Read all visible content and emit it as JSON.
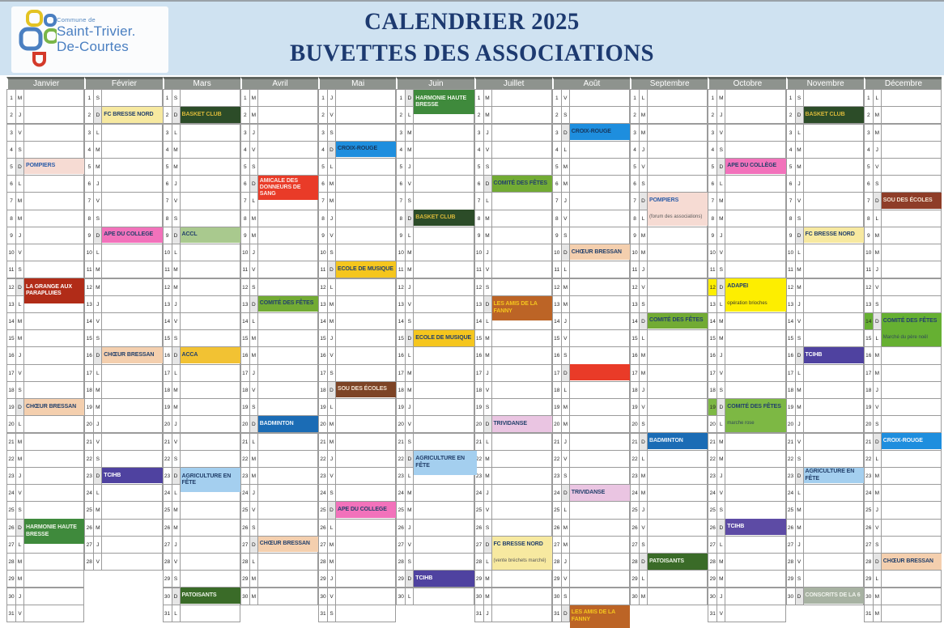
{
  "header": {
    "logo": {
      "small": "Commune de",
      "line1": "Saint-Trivier.",
      "line2": "De-Courtes"
    },
    "title_line1": "CALENDRIER 2025",
    "title_line2": "BUVETTES DES ASSOCIATIONS"
  },
  "colors": {
    "banner_bg": "#cfe2f1",
    "title": "#1d3a70",
    "band_bg": "#8e938e",
    "band_text": "#ffffff",
    "grid_border": "#9b9b9b",
    "sunday_letter_bg": "#e6e6e6",
    "logo_text": "#4a7fc1"
  },
  "calendar": {
    "weekday_letters": [
      "L",
      "M",
      "M",
      "J",
      "V",
      "S",
      "D"
    ],
    "months": [
      {
        "name": "Janvier",
        "days": 31,
        "first_dow": 2
      },
      {
        "name": "Février",
        "days": 28,
        "first_dow": 5
      },
      {
        "name": "Mars",
        "days": 31,
        "first_dow": 5
      },
      {
        "name": "Avril",
        "days": 30,
        "first_dow": 1
      },
      {
        "name": "Mai",
        "days": 31,
        "first_dow": 3
      },
      {
        "name": "Juin",
        "days": 30,
        "first_dow": 6
      },
      {
        "name": "Juillet",
        "days": 31,
        "first_dow": 1
      },
      {
        "name": "Août",
        "days": 31,
        "first_dow": 4
      },
      {
        "name": "Septembre",
        "days": 30,
        "first_dow": 0
      },
      {
        "name": "Octobre",
        "days": 31,
        "first_dow": 2
      },
      {
        "name": "Novembre",
        "days": 30,
        "first_dow": 5
      },
      {
        "name": "Décembre",
        "days": 31,
        "first_dow": 0
      }
    ],
    "events": [
      {
        "month": 1,
        "day": 5,
        "label": "POMPIERS",
        "bg": "#f6dbd3",
        "fg": "#2b5ca8"
      },
      {
        "month": 1,
        "day": 12,
        "label": "LA GRANGE AUX PARAPLUIES",
        "bg": "#b12c18",
        "fg": "#ffffff",
        "span": 1.5
      },
      {
        "month": 1,
        "day": 19,
        "label": "CHŒUR BRESSAN",
        "bg": "#f4cfae",
        "fg": "#23406b"
      },
      {
        "month": 1,
        "day": 26,
        "label": "HARMONIE HAUTE BRESSE",
        "bg": "#3f8a3c",
        "fg": "#eef5e8",
        "span": 1.5
      },
      {
        "month": 2,
        "day": 2,
        "label": "FC BRESSE NORD",
        "bg": "#f7e9a0",
        "fg": "#23406b"
      },
      {
        "month": 2,
        "day": 9,
        "label": "APE DU COLLEGE",
        "bg": "#f272bb",
        "fg": "#23406b"
      },
      {
        "month": 2,
        "day": 16,
        "label": "CHŒUR BRESSAN",
        "bg": "#f4cfae",
        "fg": "#23406b"
      },
      {
        "month": 2,
        "day": 23,
        "label": "TCIHB",
        "bg": "#4f42a0",
        "fg": "#ffffff"
      },
      {
        "month": 3,
        "day": 2,
        "label": "BASKET CLUB",
        "bg": "#2c4c28",
        "fg": "#d9b93a"
      },
      {
        "month": 3,
        "day": 9,
        "label": "ACCL",
        "bg": "#a9c98e",
        "fg": "#23406b"
      },
      {
        "month": 3,
        "day": 16,
        "label": "ACCA",
        "bg": "#f2c233",
        "fg": "#23406b"
      },
      {
        "month": 3,
        "day": 23,
        "label": "AGRICULTURE EN FÊTE",
        "bg": "#a4cfef",
        "fg": "#23406b",
        "span": 1.5
      },
      {
        "month": 3,
        "day": 30,
        "label": "PATOISANTS",
        "bg": "#3a6b28",
        "fg": "#eef5e8"
      },
      {
        "month": 4,
        "day": 6,
        "label": "AMICALE DES DONNEURS DE SANG",
        "bg": "#e93b28",
        "fg": "#fbe9e4",
        "span": 1.5
      },
      {
        "month": 4,
        "day": 13,
        "label": "COMITÉ DES FÊTES",
        "bg": "#72ab34",
        "fg": "#23406b"
      },
      {
        "month": 4,
        "day": 20,
        "label": "BADMINTON",
        "bg": "#1b6cb5",
        "fg": "#eaf2fa"
      },
      {
        "month": 4,
        "day": 27,
        "label": "CHŒUR BRESSAN",
        "bg": "#f4cfae",
        "fg": "#23406b"
      },
      {
        "month": 5,
        "day": 4,
        "label": "CROIX-ROUGE",
        "bg": "#1e8ede",
        "fg": "#16365c"
      },
      {
        "month": 5,
        "day": 11,
        "label": "ECOLE DE MUSIQUE",
        "bg": "#f5c61e",
        "fg": "#23406b"
      },
      {
        "month": 5,
        "day": 18,
        "label": "SOU DES ÉCOLES",
        "bg": "#7d4426",
        "fg": "#f3e3d3"
      },
      {
        "month": 5,
        "day": 25,
        "label": "APE DU COLLEGE",
        "bg": "#f272bb",
        "fg": "#23406b"
      },
      {
        "month": 6,
        "day": 1,
        "label": "HARMONIE HAUTE BRESSE",
        "bg": "#3f8a3c",
        "fg": "#eef5e8",
        "span": 1.5
      },
      {
        "month": 6,
        "day": 8,
        "label": "BASKET CLUB",
        "bg": "#2c4c28",
        "fg": "#d9b93a"
      },
      {
        "month": 6,
        "day": 15,
        "label": "ECOLE DE MUSIQUE",
        "bg": "#f5c61e",
        "fg": "#23406b"
      },
      {
        "month": 6,
        "day": 22,
        "label": "AGRICULTURE EN FÊTE",
        "bg": "#a4cfef",
        "fg": "#23406b",
        "span": 1.5,
        "w": 78
      },
      {
        "month": 6,
        "day": 29,
        "label": "TCIHB",
        "bg": "#4f42a0",
        "fg": "#ffffff"
      },
      {
        "month": 7,
        "day": 6,
        "label": "COMITÉ DES FÊTES",
        "bg": "#72ab34",
        "fg": "#23406b"
      },
      {
        "month": 7,
        "day": 13,
        "label": "LES AMIS DE LA FANNY",
        "bg": "#bc6426",
        "fg": "#f5c61e",
        "span": 1.5
      },
      {
        "month": 7,
        "day": 20,
        "label": "TRIVIDANSE",
        "bg": "#eac5e2",
        "fg": "#23406b"
      },
      {
        "month": 7,
        "day": 27,
        "label": "FC BRESSE NORD",
        "note": "(vente bréchets marché)",
        "note_fg": "#5a5a5a",
        "bg": "#f7e9a0",
        "fg": "#23406b",
        "span": 2
      },
      {
        "month": 8,
        "day": 3,
        "label": "CROIX-ROUGE",
        "bg": "#1e8ede",
        "fg": "#16365c"
      },
      {
        "month": 8,
        "day": 10,
        "label": "CHŒUR BRESSAN",
        "bg": "#f4cfae",
        "fg": "#23406b"
      },
      {
        "month": 8,
        "day": 17,
        "label": "",
        "bg": "#e93b28",
        "fg": "#ffffff"
      },
      {
        "month": 8,
        "day": 24,
        "label": "TRIVIDANSE",
        "bg": "#eac5e2",
        "fg": "#23406b"
      },
      {
        "month": 8,
        "day": 31,
        "label": "LES AMIS DE LA FANNY",
        "bg": "#bc6426",
        "fg": "#f5c61e",
        "span": 1.4
      },
      {
        "month": 9,
        "day": 7,
        "label": "POMPIERS",
        "note": "(forum des associations)",
        "note_fg": "#5a5a5a",
        "bg": "#f6dbd3",
        "fg": "#2b5ca8",
        "span": 2
      },
      {
        "month": 9,
        "day": 14,
        "label": "COMITÉ DES FÊTES",
        "bg": "#72ab34",
        "fg": "#23406b"
      },
      {
        "month": 9,
        "day": 21,
        "label": "BADMINTON",
        "bg": "#1b6cb5",
        "fg": "#eaf2fa"
      },
      {
        "month": 9,
        "day": 28,
        "label": "PATOISANTS",
        "bg": "#3a6b28",
        "fg": "#eef5e8"
      },
      {
        "month": 10,
        "day": 5,
        "label": "APE DU COLLÈGE",
        "bg": "#f272bb",
        "fg": "#23406b"
      },
      {
        "month": 10,
        "day": 12,
        "label": "ADAPEI",
        "note": "opération brioches",
        "note_fg": "#3a3a2a",
        "bg": "#fdee00",
        "fg": "#23406b",
        "span": 2,
        "num_bg": "#fdee00"
      },
      {
        "month": 10,
        "day": 19,
        "label": "COMITÉ DES FÊTES",
        "note": "marche rose",
        "note_fg": "#2f4858",
        "bg": "#7db844",
        "fg": "#23406b",
        "span": 2,
        "num_bg": "#7db844"
      },
      {
        "month": 10,
        "day": 26,
        "label": "TCIHB",
        "bg": "#5d4ba5",
        "fg": "#ffffff"
      },
      {
        "month": 11,
        "day": 2,
        "label": "BASKET CLUB",
        "bg": "#2c4c28",
        "fg": "#d9b93a"
      },
      {
        "month": 11,
        "day": 9,
        "label": "FC BRESSE NORD",
        "bg": "#f7e9a0",
        "fg": "#23406b"
      },
      {
        "month": 11,
        "day": 16,
        "label": "TCIHB",
        "bg": "#4f42a0",
        "fg": "#ffffff"
      },
      {
        "month": 11,
        "day": 23,
        "label": "AGRICULTURE EN FÊTE",
        "bg": "#a4cfef",
        "fg": "#23406b"
      },
      {
        "month": 11,
        "day": 30,
        "label": "CONSCRITS DE LA 6",
        "bg": "#a7b2a2",
        "fg": "#f0f3ec"
      },
      {
        "month": 12,
        "day": 7,
        "label": "SOU DES ÉCOLES",
        "bg": "#8e3d28",
        "fg": "#f3e3d3"
      },
      {
        "month": 12,
        "day": 14,
        "label": "COMITÉ DES FÊTES",
        "note": "Marché du père noël",
        "note_fg": "#2f4858",
        "bg": "#66b032",
        "fg": "#23406b",
        "span": 2,
        "num_bg": "#66b032"
      },
      {
        "month": 12,
        "day": 21,
        "label": "CROIX-ROUGE",
        "bg": "#1e8ede",
        "fg": "#f2f7fc"
      },
      {
        "month": 12,
        "day": 28,
        "label": "CHŒUR BRESSAN",
        "bg": "#f4cfae",
        "fg": "#23406b"
      }
    ]
  }
}
